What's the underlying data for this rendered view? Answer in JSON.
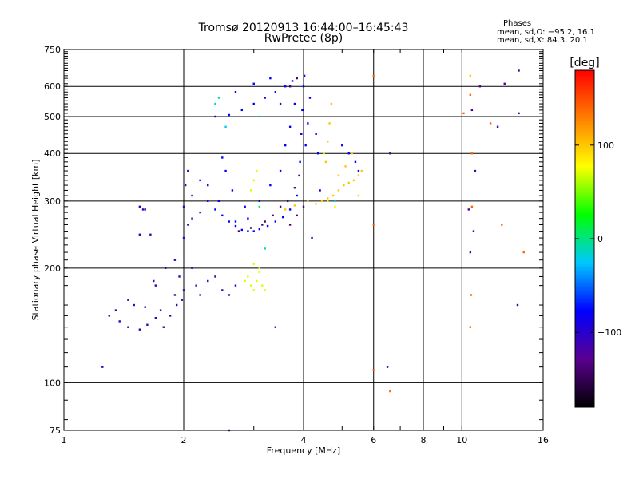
{
  "header": {
    "title_line1": "Tromsø 20120913 16:44:00–16:45:43",
    "title_line2": "RwPretec (8p)",
    "stats_title": "Phases",
    "stats_o": "mean, sd,O:  −95.2, 16.1",
    "stats_x": "mean, sd,X:  84.3, 20.1"
  },
  "colors": {
    "background": "#ffffff",
    "grid": "#000000"
  },
  "chart_data": {
    "type": "scatter",
    "title": "Tromsø 20120913 16:44:00–16:45:43",
    "subtitle": "RwPretec (8p)",
    "xlabel": "Frequency [MHz]",
    "ylabel": "Stationary phase Virtual Height [km]",
    "xscale": "log",
    "yscale": "log",
    "xlim": [
      1,
      16
    ],
    "ylim": [
      75,
      750
    ],
    "xticks": [
      1,
      2,
      4,
      6,
      8,
      10,
      16
    ],
    "xtick_labels": [
      "1",
      "2",
      "4",
      "6",
      "8",
      "10",
      "16"
    ],
    "yticks": [
      75,
      100,
      200,
      300,
      400,
      500,
      600,
      750
    ],
    "ytick_labels": [
      "75",
      "100",
      "200",
      "300",
      "400",
      "500",
      "600",
      "750"
    ],
    "grid": true,
    "colorbar": {
      "label": "[deg]",
      "range": [
        -180,
        180
      ],
      "ticks": [
        -100,
        0,
        100
      ],
      "tick_labels": [
        "−100",
        "0",
        "100"
      ],
      "colormap": [
        "#000000",
        "#5a0090",
        "#0000ff",
        "#00c8ff",
        "#00ff00",
        "#ffff00",
        "#ff8000",
        "#ff0000"
      ]
    },
    "series": [
      {
        "phase": -110,
        "points": [
          [
            1.3,
            150
          ],
          [
            1.38,
            145
          ],
          [
            1.45,
            140
          ],
          [
            1.55,
            138
          ],
          [
            1.62,
            142
          ],
          [
            1.7,
            148
          ],
          [
            1.78,
            140
          ],
          [
            1.85,
            150
          ],
          [
            1.92,
            160
          ],
          [
            1.98,
            165
          ],
          [
            1.35,
            155
          ],
          [
            1.5,
            160
          ],
          [
            1.6,
            158
          ],
          [
            1.75,
            155
          ],
          [
            1.9,
            170
          ],
          [
            2.0,
            175
          ],
          [
            1.45,
            165
          ],
          [
            1.7,
            180
          ],
          [
            1.95,
            190
          ],
          [
            2.1,
            200
          ],
          [
            2.15,
            180
          ],
          [
            2.2,
            170
          ],
          [
            2.3,
            185
          ],
          [
            2.4,
            190
          ],
          [
            2.5,
            175
          ],
          [
            2.6,
            170
          ],
          [
            2.7,
            180
          ],
          [
            1.68,
            185
          ],
          [
            1.8,
            200
          ],
          [
            1.9,
            210
          ],
          [
            2.0,
            240
          ],
          [
            2.05,
            260
          ],
          [
            2.0,
            290
          ],
          [
            2.02,
            330
          ],
          [
            2.05,
            360
          ],
          [
            2.1,
            310
          ],
          [
            2.1,
            270
          ],
          [
            2.2,
            280
          ],
          [
            1.55,
            245
          ],
          [
            1.65,
            245
          ],
          [
            1.55,
            290
          ],
          [
            1.6,
            285
          ],
          [
            1.25,
            110
          ],
          [
            1.58,
            285
          ]
        ]
      },
      {
        "phase": -80,
        "points": [
          [
            2.3,
            300
          ],
          [
            2.4,
            285
          ],
          [
            2.5,
            275
          ],
          [
            2.6,
            265
          ],
          [
            2.7,
            258
          ],
          [
            2.8,
            252
          ],
          [
            2.9,
            250
          ],
          [
            3.0,
            250
          ],
          [
            3.1,
            253
          ],
          [
            3.25,
            258
          ],
          [
            3.4,
            265
          ],
          [
            3.55,
            272
          ],
          [
            3.7,
            285
          ],
          [
            3.85,
            310
          ],
          [
            3.92,
            380
          ],
          [
            3.95,
            450
          ],
          [
            3.97,
            520
          ],
          [
            4.0,
            600
          ],
          [
            4.02,
            640
          ],
          [
            3.75,
            620
          ],
          [
            3.6,
            600
          ],
          [
            3.4,
            580
          ],
          [
            3.2,
            560
          ],
          [
            3.0,
            540
          ],
          [
            2.8,
            520
          ],
          [
            2.6,
            505
          ],
          [
            2.4,
            500
          ],
          [
            4.15,
            560
          ],
          [
            4.1,
            480
          ],
          [
            4.05,
            420
          ],
          [
            4.3,
            450
          ],
          [
            4.35,
            400
          ],
          [
            4.4,
            320
          ],
          [
            2.2,
            340
          ],
          [
            2.3,
            330
          ],
          [
            2.45,
            300
          ],
          [
            2.7,
            265
          ],
          [
            2.9,
            270
          ],
          [
            3.1,
            300
          ],
          [
            3.3,
            330
          ],
          [
            3.5,
            360
          ],
          [
            3.6,
            420
          ],
          [
            3.7,
            470
          ],
          [
            3.8,
            540
          ],
          [
            2.85,
            290
          ],
          [
            2.65,
            320
          ],
          [
            2.55,
            360
          ],
          [
            2.5,
            390
          ],
          [
            5.0,
            420
          ],
          [
            5.2,
            400
          ],
          [
            5.4,
            380
          ],
          [
            5.5,
            360
          ],
          [
            2.7,
            580
          ],
          [
            3.0,
            610
          ],
          [
            3.3,
            630
          ]
        ]
      },
      {
        "phase": -140,
        "points": [
          [
            3.2,
            265
          ],
          [
            3.35,
            275
          ],
          [
            3.5,
            290
          ],
          [
            3.65,
            300
          ],
          [
            3.8,
            325
          ],
          [
            3.9,
            350
          ],
          [
            3.5,
            540
          ],
          [
            3.7,
            600
          ],
          [
            3.85,
            630
          ],
          [
            3.7,
            260
          ],
          [
            3.85,
            275
          ],
          [
            4.0,
            290
          ],
          [
            2.75,
            250
          ],
          [
            2.95,
            255
          ],
          [
            3.15,
            260
          ]
        ]
      },
      {
        "phase": 100,
        "points": [
          [
            4.3,
            295
          ],
          [
            4.45,
            300
          ],
          [
            4.6,
            305
          ],
          [
            4.75,
            310
          ],
          [
            4.9,
            320
          ],
          [
            5.05,
            330
          ],
          [
            5.2,
            335
          ],
          [
            5.35,
            340
          ],
          [
            5.5,
            350
          ],
          [
            5.6,
            360
          ],
          [
            4.55,
            380
          ],
          [
            4.6,
            430
          ],
          [
            4.65,
            480
          ],
          [
            4.7,
            540
          ],
          [
            5.3,
            400
          ],
          [
            5.5,
            310
          ],
          [
            3.6,
            285
          ],
          [
            3.8,
            292
          ],
          [
            4.1,
            300
          ],
          [
            10.5,
            640
          ],
          [
            4.9,
            350
          ],
          [
            5.1,
            370
          ]
        ]
      },
      {
        "phase": 70,
        "points": [
          [
            2.9,
            190
          ],
          [
            2.95,
            180
          ],
          [
            3.0,
            175
          ],
          [
            3.05,
            185
          ],
          [
            3.1,
            195
          ],
          [
            3.15,
            180
          ],
          [
            3.2,
            175
          ],
          [
            3.0,
            205
          ],
          [
            3.1,
            200
          ],
          [
            2.85,
            185
          ],
          [
            3.0,
            340
          ],
          [
            3.05,
            360
          ],
          [
            2.95,
            320
          ],
          [
            4.5,
            400
          ],
          [
            4.6,
            300
          ],
          [
            4.8,
            290
          ]
        ]
      },
      {
        "phase": 140,
        "points": [
          [
            6.0,
            640
          ],
          [
            6.0,
            260
          ],
          [
            6.6,
            95
          ],
          [
            6.0,
            108
          ],
          [
            10.1,
            510
          ],
          [
            10.6,
            290
          ],
          [
            10.5,
            140
          ],
          [
            10.55,
            170
          ],
          [
            11.8,
            480
          ],
          [
            12.6,
            260
          ],
          [
            14.3,
            220
          ],
          [
            10.5,
            570
          ],
          [
            10.6,
            400
          ]
        ]
      },
      {
        "phase": -120,
        "points": [
          [
            10.6,
            520
          ],
          [
            10.8,
            360
          ],
          [
            10.7,
            250
          ],
          [
            11.1,
            600
          ],
          [
            12.3,
            470
          ],
          [
            13.8,
            160
          ],
          [
            13.9,
            660
          ],
          [
            13.9,
            510
          ],
          [
            6.5,
            110
          ],
          [
            6.6,
            400
          ],
          [
            10.4,
            285
          ],
          [
            10.5,
            220
          ],
          [
            12.8,
            610
          ],
          [
            3.4,
            140
          ],
          [
            2.6,
            75
          ],
          [
            4.2,
            240
          ]
        ]
      },
      {
        "phase": 0,
        "points": [
          [
            2.45,
            560
          ],
          [
            3.1,
            290
          ],
          [
            3.2,
            225
          ]
        ]
      },
      {
        "phase": -20,
        "points": [
          [
            2.4,
            540
          ],
          [
            2.55,
            470
          ],
          [
            3.1,
            500
          ],
          [
            4.8,
            300
          ]
        ]
      }
    ]
  }
}
